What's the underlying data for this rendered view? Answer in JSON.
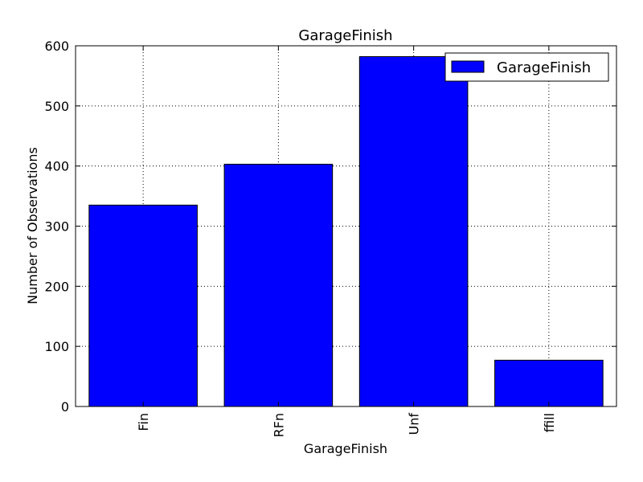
{
  "chart_data": {
    "type": "bar",
    "title": "GarageFinish",
    "xlabel": "GarageFinish",
    "ylabel": "Number of Observations",
    "categories": [
      "Fin",
      "RFn",
      "Unf",
      "ffill"
    ],
    "series": [
      {
        "name": "GarageFinish",
        "values": [
          335,
          403,
          582,
          77
        ],
        "color": "#0000ff"
      }
    ],
    "ylim": [
      0,
      600
    ],
    "yticks": [
      0,
      100,
      200,
      300,
      400,
      500,
      600
    ],
    "grid": true,
    "legend_position": "top-right"
  }
}
